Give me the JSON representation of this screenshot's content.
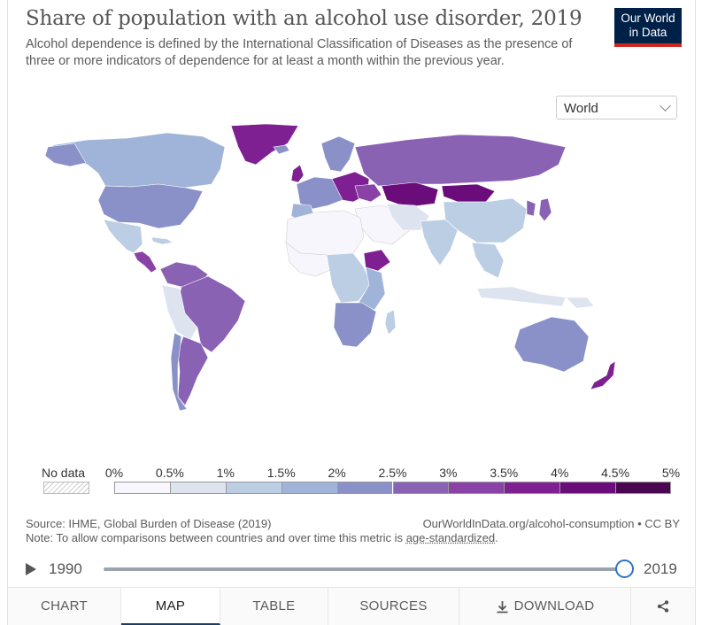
{
  "header": {
    "title": "Share of population with an alcohol use disorder, 2019",
    "subtitle": "Alcohol dependence is defined by the International Classification of Diseases as the presence of three or more indicators of dependence for at least a month within the previous year."
  },
  "logo": {
    "line1": "Our World",
    "line2": "in Data",
    "bg": "#002147",
    "accent": "#ce261e"
  },
  "entity_selector": {
    "value": "World",
    "icon": "chevron-down-icon"
  },
  "legend": {
    "no_data_label": "No data",
    "ticks": [
      "0%",
      "0.5%",
      "1%",
      "1.5%",
      "2%",
      "2.5%",
      "3%",
      "3.5%",
      "4%",
      "4.5%",
      "5%"
    ],
    "colors": [
      "#f7f6fc",
      "#dde3ef",
      "#bccee4",
      "#9fb4d8",
      "#8a91c8",
      "#8a62b3",
      "#8a42a6",
      "#7e2092",
      "#6a0c79",
      "#4a0650"
    ]
  },
  "footer": {
    "source_prefix": "Source: IHME, Global Burden of Disease (2019)",
    "note_prefix": "Note: To allow comparisons between countries and over time this metric is ",
    "note_link": "age-standardized",
    "note_suffix": ".",
    "url": "OurWorldInData.org/alcohol-consumption • CC BY"
  },
  "timeline": {
    "start_year": "1990",
    "end_year": "2019",
    "selected_fraction": 1.0
  },
  "tabs": [
    {
      "label": "CHART",
      "active": false
    },
    {
      "label": "MAP",
      "active": true
    },
    {
      "label": "TABLE",
      "active": false
    },
    {
      "label": "SOURCES",
      "active": false
    },
    {
      "label": "DOWNLOAD",
      "active": false,
      "icon": "download-icon"
    },
    {
      "label": "",
      "active": false,
      "icon": "share-icon"
    }
  ]
}
